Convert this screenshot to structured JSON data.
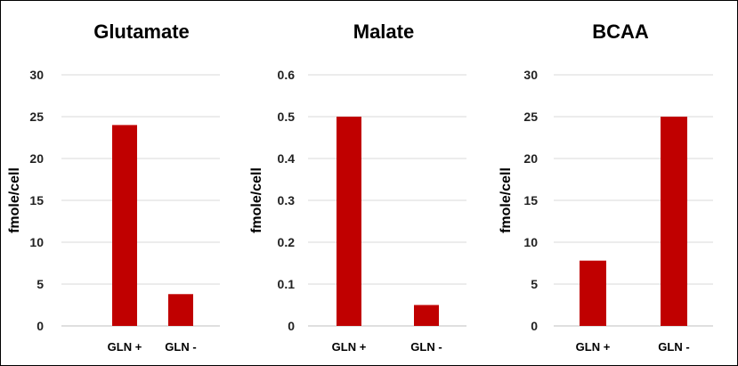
{
  "chart_data": [
    {
      "type": "bar",
      "title": "Glutamate",
      "ylabel": "fmole/cell",
      "xlabel": "",
      "categories": [
        "GLN +",
        "GLN -"
      ],
      "values": [
        24,
        3.8
      ],
      "ylim": [
        0,
        30
      ],
      "yticks": [
        "0",
        "5",
        "10",
        "15",
        "20",
        "25",
        "30"
      ],
      "color": "#c00000",
      "grid": true
    },
    {
      "type": "bar",
      "title": "Malate",
      "ylabel": "fmole/cell",
      "xlabel": "",
      "categories": [
        "GLN +",
        "GLN -"
      ],
      "values": [
        0.5,
        0.05
      ],
      "ylim": [
        0,
        0.6
      ],
      "yticks": [
        "0",
        "0.1",
        "0.2",
        "0.3",
        "0.4",
        "0.5",
        "0.6"
      ],
      "color": "#c00000",
      "grid": true
    },
    {
      "type": "bar",
      "title": "BCAA",
      "ylabel": "fmole/cell",
      "xlabel": "",
      "categories": [
        "GLN +",
        "GLN -"
      ],
      "values": [
        7.8,
        25
      ],
      "ylim": [
        0,
        30
      ],
      "yticks": [
        "0",
        "5",
        "10",
        "15",
        "20",
        "25",
        "30"
      ],
      "color": "#c00000",
      "grid": true
    }
  ]
}
